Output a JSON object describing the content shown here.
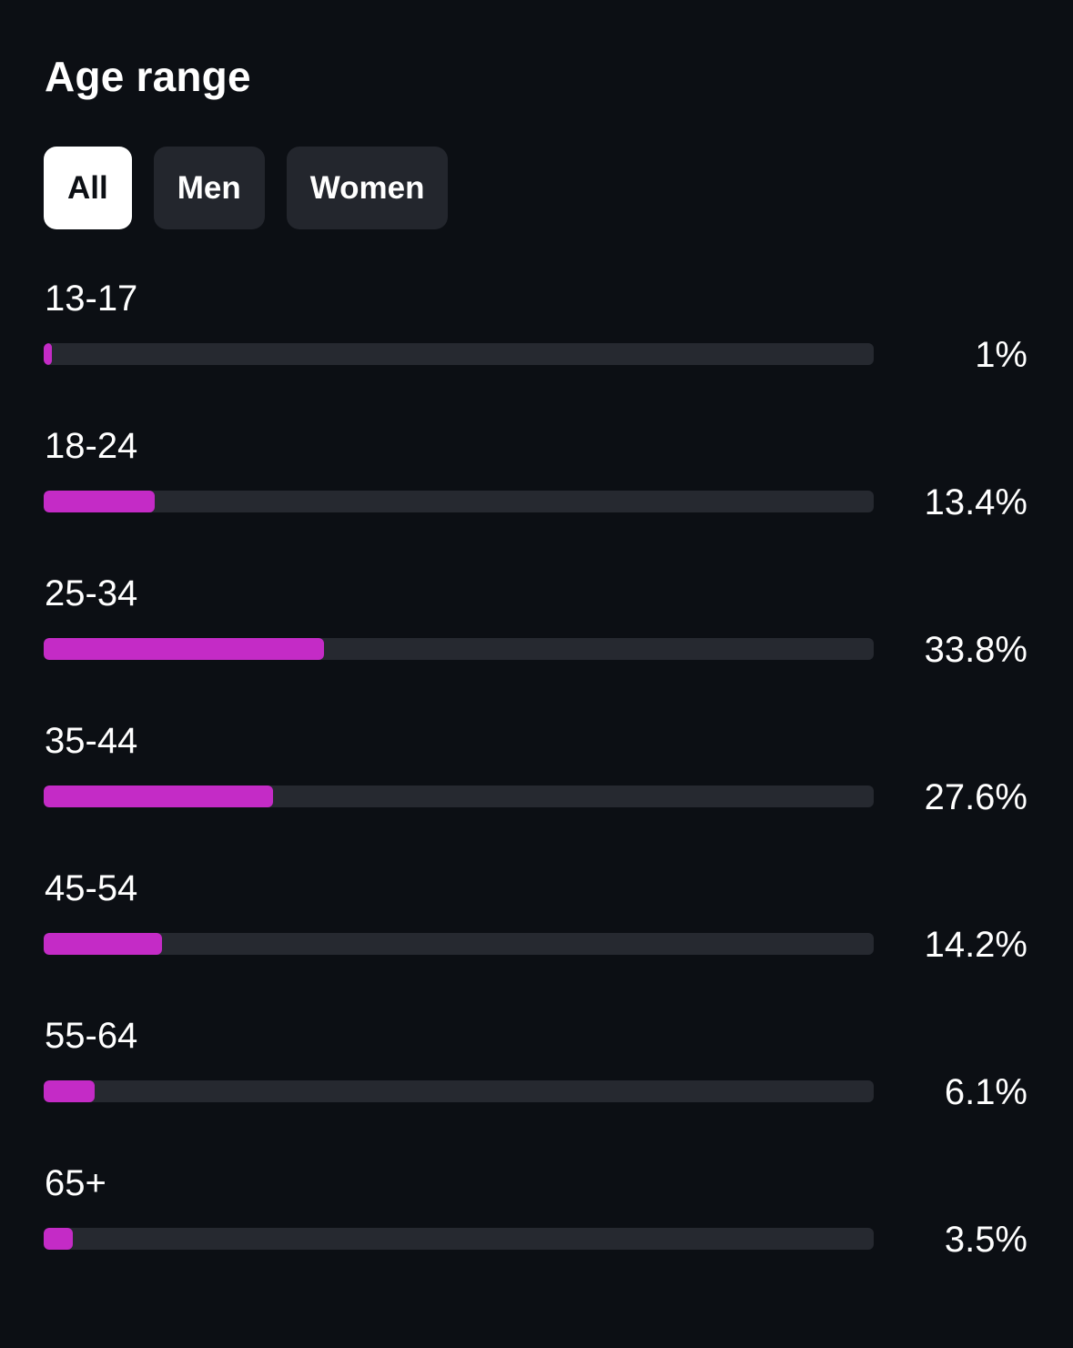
{
  "title": "Age range",
  "tabs": [
    {
      "label": "All",
      "active": true
    },
    {
      "label": "Men",
      "active": false
    },
    {
      "label": "Women",
      "active": false
    }
  ],
  "colors": {
    "background": "#0c0f14",
    "bar_fill": "#c42bc6",
    "bar_track": "#262930",
    "tab_inactive": "#23262d",
    "tab_active": "#ffffff"
  },
  "chart_data": {
    "type": "bar",
    "orientation": "horizontal",
    "categories": [
      "13-17",
      "18-24",
      "25-34",
      "35-44",
      "45-54",
      "55-64",
      "65+"
    ],
    "values": [
      1,
      13.4,
      33.8,
      27.6,
      14.2,
      6.1,
      3.5
    ],
    "value_labels": [
      "1%",
      "13.4%",
      "33.8%",
      "27.6%",
      "14.2%",
      "6.1%",
      "3.5%"
    ],
    "unit": "%",
    "xlim": [
      0,
      100
    ]
  }
}
